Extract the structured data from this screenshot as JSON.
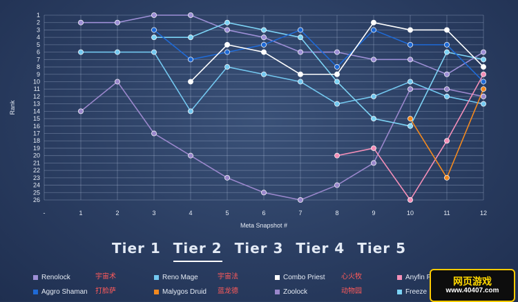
{
  "chart_data": {
    "type": "line",
    "xlabel": "Meta Snapshot #",
    "ylabel": "Rank",
    "x_ticks": [
      "-",
      "1",
      "2",
      "3",
      "4",
      "5",
      "6",
      "7",
      "8",
      "9",
      "10",
      "11",
      "12"
    ],
    "y_range": [
      1,
      26
    ],
    "y_inverted": true,
    "grid": true,
    "series": [
      {
        "name": "Renolock",
        "color": "#9d8fd6",
        "points": [
          [
            1,
            2
          ],
          [
            2,
            2
          ],
          [
            3,
            1
          ],
          [
            4,
            1
          ],
          [
            5,
            3
          ],
          [
            6,
            4
          ],
          [
            7,
            6
          ],
          [
            8,
            6
          ],
          [
            9,
            7
          ],
          [
            10,
            7
          ],
          [
            11,
            9
          ],
          [
            12,
            6
          ]
        ]
      },
      {
        "name": "Zoolock",
        "color": "#9a87cc",
        "points": [
          [
            1,
            14
          ],
          [
            2,
            10
          ],
          [
            3,
            17
          ],
          [
            4,
            20
          ],
          [
            5,
            23
          ],
          [
            6,
            25
          ],
          [
            7,
            26
          ],
          [
            8,
            24
          ],
          [
            9,
            21
          ],
          [
            10,
            11
          ],
          [
            11,
            11
          ],
          [
            12,
            12
          ]
        ]
      },
      {
        "name": "Reno Mage",
        "color": "#73c8f0",
        "points": [
          [
            1,
            6
          ],
          [
            2,
            6
          ],
          [
            3,
            6
          ],
          [
            4,
            14
          ],
          [
            5,
            8
          ],
          [
            6,
            9
          ],
          [
            7,
            10
          ],
          [
            8,
            13
          ],
          [
            9,
            12
          ],
          [
            10,
            10
          ],
          [
            11,
            12
          ],
          [
            12,
            13
          ]
        ]
      },
      {
        "name": "Freeze Mage",
        "color": "#7cd3f5",
        "points": [
          [
            3,
            4
          ],
          [
            4,
            4
          ],
          [
            5,
            2
          ],
          [
            6,
            3
          ],
          [
            7,
            4
          ],
          [
            8,
            10
          ],
          [
            9,
            15
          ],
          [
            10,
            16
          ],
          [
            11,
            6
          ],
          [
            12,
            7
          ]
        ]
      },
      {
        "name": "Aggro Shaman",
        "color": "#1f6ad6",
        "points": [
          [
            3,
            3
          ],
          [
            4,
            7
          ],
          [
            5,
            6
          ],
          [
            6,
            5
          ],
          [
            7,
            3
          ],
          [
            8,
            8
          ],
          [
            9,
            3
          ],
          [
            10,
            5
          ],
          [
            11,
            5
          ],
          [
            12,
            10
          ]
        ]
      },
      {
        "name": "Combo Priest",
        "color": "#ffffff",
        "points": [
          [
            4,
            10
          ],
          [
            5,
            5
          ],
          [
            6,
            6
          ],
          [
            7,
            9
          ],
          [
            8,
            9
          ],
          [
            9,
            2
          ],
          [
            10,
            3
          ],
          [
            11,
            3
          ],
          [
            12,
            8
          ]
        ]
      },
      {
        "name": "Anyfin Paladin",
        "color": "#f48fb8",
        "points": [
          [
            8,
            20
          ],
          [
            9,
            19
          ],
          [
            10,
            26
          ],
          [
            11,
            18
          ],
          [
            12,
            9
          ]
        ]
      },
      {
        "name": "Malygos Druid",
        "color": "#f2891f",
        "points": [
          [
            10,
            15
          ],
          [
            11,
            23
          ],
          [
            12,
            11
          ]
        ]
      }
    ]
  },
  "tiers": [
    "Tier 1",
    "Tier 2",
    "Tier 3",
    "Tier 4",
    "Tier 5"
  ],
  "active_tier": "Tier 2",
  "legend": {
    "row1": [
      {
        "label": "Renolock",
        "cn": "宇宙术",
        "color": "#9d8fd6"
      },
      {
        "label": "Reno Mage",
        "cn": "宇宙法",
        "color": "#73c8f0"
      },
      {
        "label": "Combo Priest",
        "cn": "心火牧",
        "color": "#ffffff"
      },
      {
        "label": "Anyfin P",
        "cn": "",
        "color": "#f48fb8"
      }
    ],
    "row2": [
      {
        "label": "Aggro Shaman",
        "cn": "打脸萨",
        "color": "#1f6ad6"
      },
      {
        "label": "Malygos Druid",
        "cn": "蓝龙德",
        "color": "#f2891f"
      },
      {
        "label": "Zoolock",
        "cn": "动物园",
        "color": "#9a87cc"
      },
      {
        "label": "Freeze",
        "cn": "",
        "color": "#7cd3f5"
      }
    ]
  },
  "watermark": {
    "title": "网页游戏",
    "url": "www.40407.com"
  }
}
